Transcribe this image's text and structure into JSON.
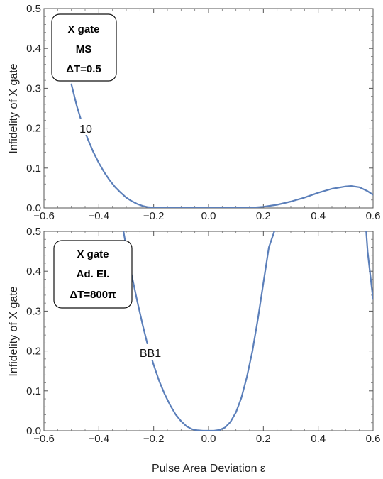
{
  "xlabel": "Pulse Area Deviation ε",
  "chart_data": [
    {
      "type": "line",
      "ylabel": "Infidelity of X gate",
      "xlim": [
        -0.6,
        0.6
      ],
      "ylim": [
        0.0,
        0.5
      ],
      "xticks": [
        "−0.6",
        "−0.4",
        "−0.2",
        "0.0",
        "0.2",
        "0.4",
        "0.6"
      ],
      "yticks": [
        "0.0",
        "0.1",
        "0.2",
        "0.3",
        "0.4",
        "0.5"
      ],
      "box_lines": [
        "X gate",
        "MS",
        "ΔT=0.5"
      ],
      "curve_label": "10",
      "color": "#5b7fba",
      "series": [
        {
          "x": [
            -0.5,
            -0.48,
            -0.46,
            -0.44,
            -0.42,
            -0.4,
            -0.38,
            -0.36,
            -0.34,
            -0.32,
            -0.3,
            -0.28,
            -0.26,
            -0.24,
            -0.22,
            -0.2,
            -0.18,
            -0.16,
            -0.14,
            -0.12,
            -0.1,
            -0.05,
            0.0,
            0.05,
            0.1,
            0.15,
            0.2,
            0.25,
            0.3,
            0.35,
            0.4,
            0.45,
            0.5,
            0.52,
            0.55,
            0.58,
            0.6
          ],
          "y": [
            0.31,
            0.255,
            0.21,
            0.172,
            0.14,
            0.113,
            0.089,
            0.069,
            0.052,
            0.038,
            0.026,
            0.017,
            0.01,
            0.005,
            0.002,
            0.001,
            0.0003,
            0.0,
            0.0,
            0.0,
            0.0,
            0.0,
            0.0,
            0.0,
            0.0,
            0.0005,
            0.003,
            0.008,
            0.016,
            0.026,
            0.038,
            0.048,
            0.054,
            0.055,
            0.052,
            0.042,
            0.033
          ]
        }
      ]
    },
    {
      "type": "line",
      "ylabel": "Infidelity of X gate",
      "xlim": [
        -0.6,
        0.6
      ],
      "ylim": [
        0.0,
        0.5
      ],
      "xticks": [
        "−0.6",
        "−0.4",
        "−0.2",
        "0.0",
        "0.2",
        "0.4",
        "0.6"
      ],
      "yticks": [
        "0.0",
        "0.1",
        "0.2",
        "0.3",
        "0.4",
        "0.5"
      ],
      "box_lines": [
        "X gate",
        "Ad. El.",
        "ΔT=800π"
      ],
      "curve_label": "BB1",
      "color": "#5b7fba",
      "series": [
        {
          "x": [
            -0.31,
            -0.3,
            -0.28,
            -0.26,
            -0.24,
            -0.22,
            -0.2,
            -0.18,
            -0.16,
            -0.14,
            -0.12,
            -0.1,
            -0.08,
            -0.06,
            -0.04,
            -0.02,
            0.0,
            0.02,
            0.04,
            0.06,
            0.08,
            0.1,
            0.12,
            0.14,
            0.16,
            0.18,
            0.2,
            0.22,
            0.24
          ],
          "y": [
            0.5,
            0.46,
            0.39,
            0.325,
            0.265,
            0.21,
            0.165,
            0.125,
            0.092,
            0.064,
            0.041,
            0.024,
            0.011,
            0.004,
            0.001,
            0.0,
            0.0,
            0.0,
            0.002,
            0.008,
            0.022,
            0.046,
            0.083,
            0.135,
            0.2,
            0.28,
            0.37,
            0.46,
            0.5
          ]
        },
        {
          "x": [
            0.575,
            0.58,
            0.59,
            0.6
          ],
          "y": [
            0.5,
            0.45,
            0.39,
            0.33
          ]
        }
      ]
    }
  ]
}
